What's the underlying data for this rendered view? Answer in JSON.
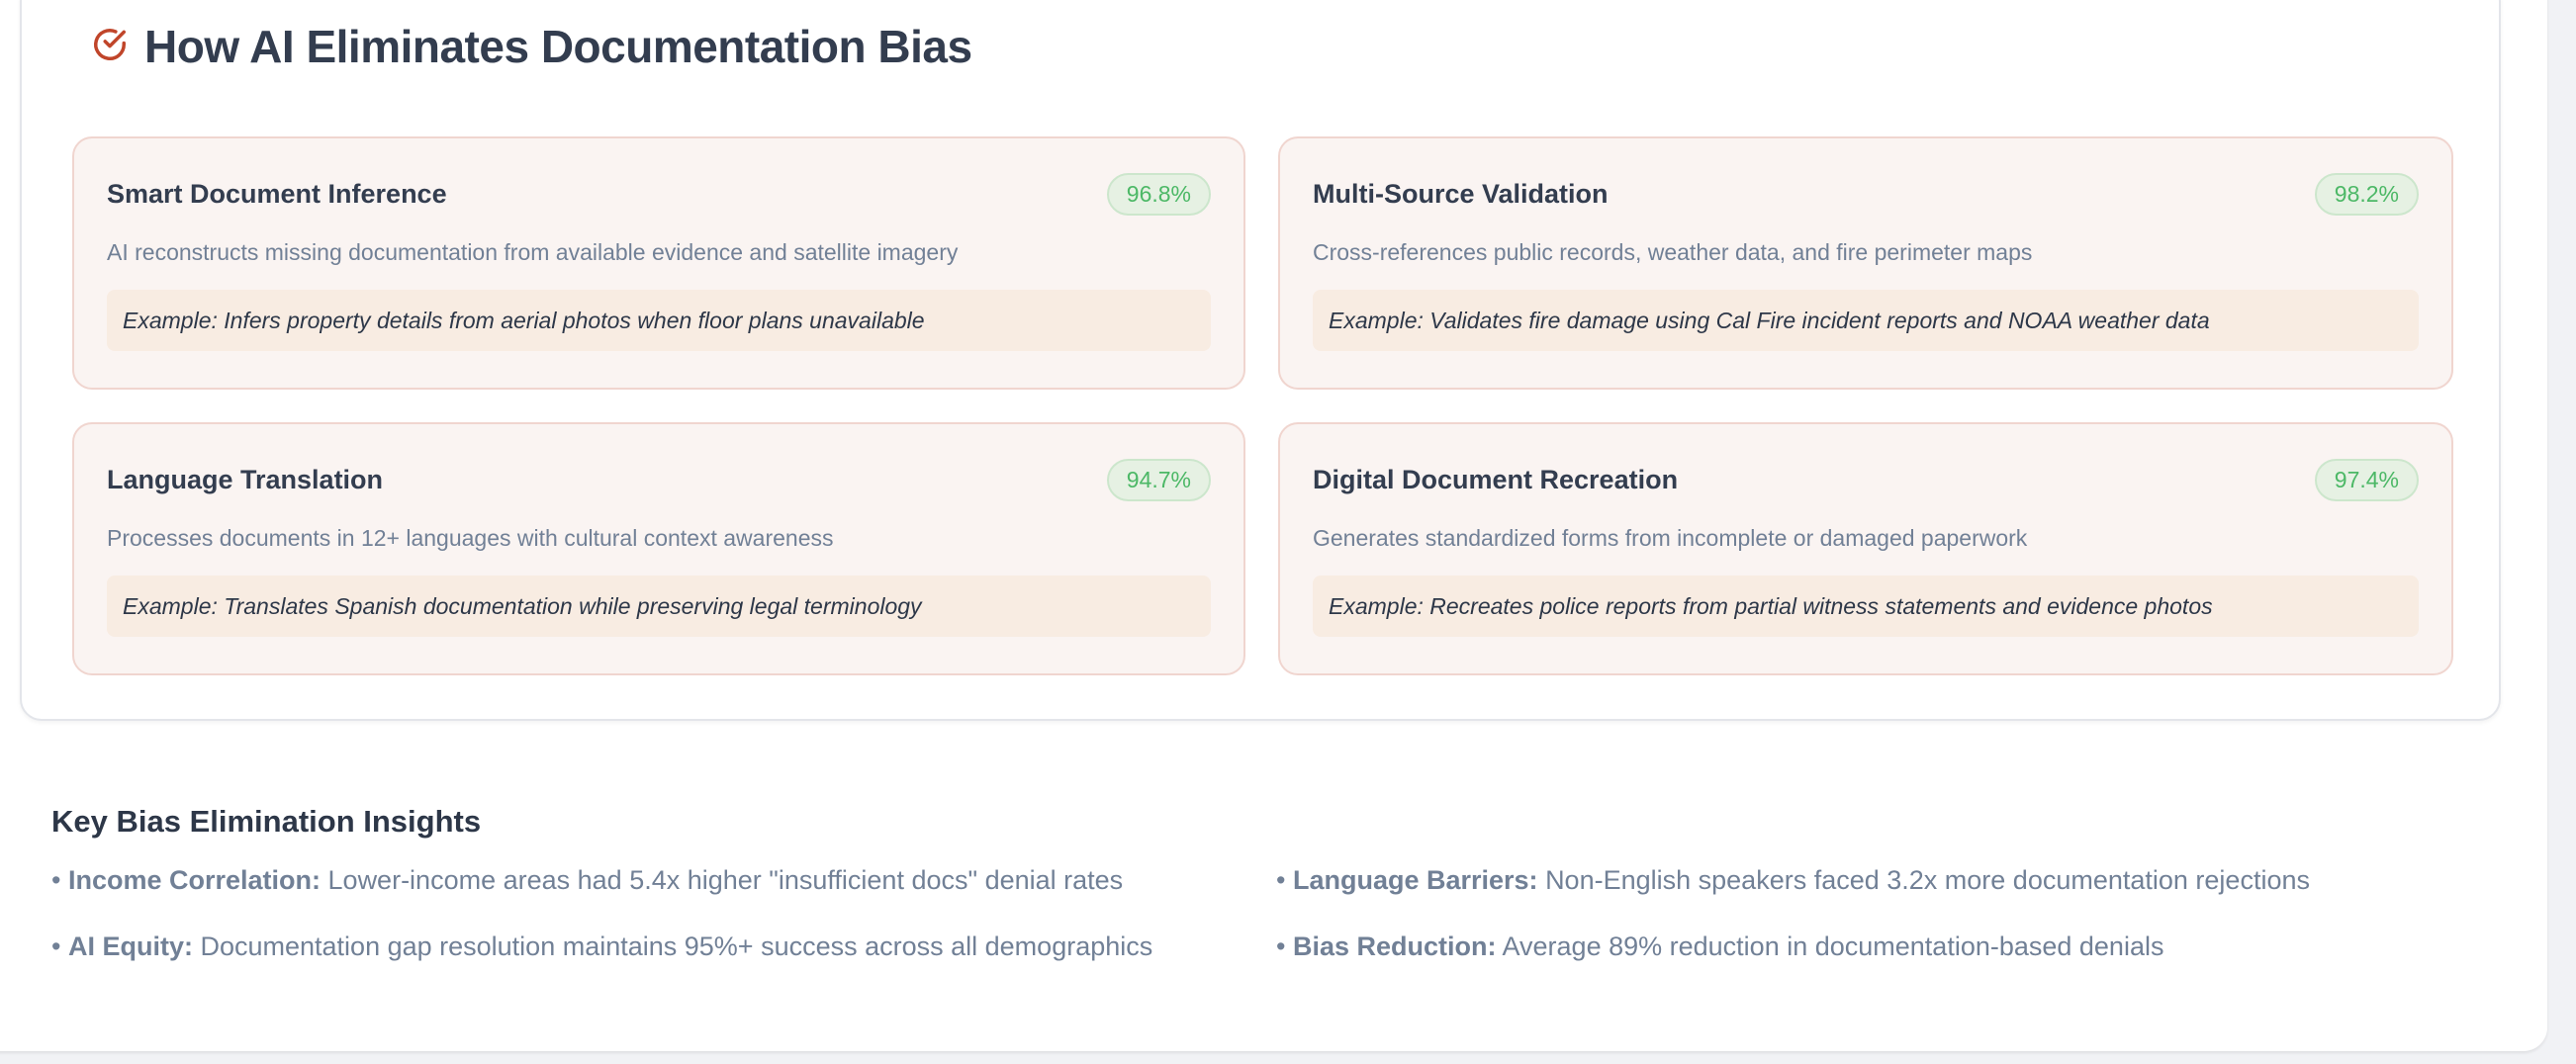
{
  "section": {
    "title": "How AI Eliminates Documentation Bias",
    "title_icon": "check-circle-icon",
    "accent_color": "#c0452a",
    "cards": [
      {
        "title": "Smart Document Inference",
        "badge": "96.8%",
        "description": "AI reconstructs missing documentation from available evidence and satellite imagery",
        "example": "Example: Infers property details from aerial photos when floor plans unavailable"
      },
      {
        "title": "Multi-Source Validation",
        "badge": "98.2%",
        "description": "Cross-references public records, weather data, and fire perimeter maps",
        "example": "Example: Validates fire damage using Cal Fire incident reports and NOAA weather data"
      },
      {
        "title": "Language Translation",
        "badge": "94.7%",
        "description": "Processes documents in 12+ languages with cultural context awareness",
        "example": "Example: Translates Spanish documentation while preserving legal terminology"
      },
      {
        "title": "Digital Document Recreation",
        "badge": "97.4%",
        "description": "Generates standardized forms from incomplete or damaged paperwork",
        "example": "Example: Recreates police reports from partial witness statements and evidence photos"
      }
    ]
  },
  "insights": {
    "title": "Key Bias Elimination Insights",
    "items": [
      {
        "label": "Income Correlation:",
        "text": "Lower-income areas had 5.4x higher \"insufficient docs\" denial rates"
      },
      {
        "label": "Language Barriers:",
        "text": "Non-English speakers faced 3.2x more documentation rejections"
      },
      {
        "label": "AI Equity:",
        "text": "Documentation gap resolution maintains 95%+ success across all demographics"
      },
      {
        "label": "Bias Reduction:",
        "text": "Average 89% reduction in documentation-based denials"
      }
    ]
  }
}
